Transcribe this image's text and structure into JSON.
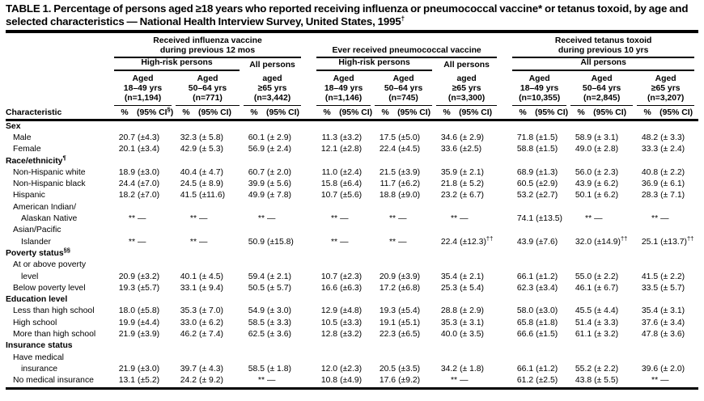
{
  "title": {
    "text": "TABLE 1. Percentage of persons aged ≥18 years who reported receiving influenza or pneumococcal vaccine* or tetanus toxoid, by age and selected characteristics — National Health Interview Survey, United States, 1995",
    "sup": "†"
  },
  "header": {
    "characteristic_label": "Characteristic",
    "groups": [
      {
        "label_lines": [
          "Received influenza vaccine",
          "during previous 12 mos"
        ],
        "subgroups": [
          {
            "label": "High-risk persons",
            "cols": 2,
            "rule": true
          },
          {
            "label": "All persons",
            "cols": 1,
            "rule": false
          }
        ],
        "columns": [
          {
            "lines": [
              "Aged",
              "18–49 yrs",
              "(n=1,194)"
            ]
          },
          {
            "lines": [
              "Aged",
              "50–64 yrs",
              "(n=771)"
            ]
          },
          {
            "lines": [
              "aged",
              "≥65 yrs",
              "(n=3,442)"
            ]
          }
        ],
        "measures": [
          {
            "pct": "%",
            "ci_pre": "(95% CI",
            "ci_sup": "§",
            "ci_post": ")"
          },
          {
            "pct": "%",
            "ci_pre": "(95% CI)",
            "ci_sup": "",
            "ci_post": ""
          },
          {
            "pct": "%",
            "ci_pre": "(95% CI)",
            "ci_sup": "",
            "ci_post": ""
          }
        ]
      },
      {
        "label_lines": [
          "Ever received pneumococcal vaccine"
        ],
        "subgroups": [
          {
            "label": "High-risk persons",
            "cols": 2,
            "rule": true
          },
          {
            "label": "All persons",
            "cols": 1,
            "rule": false
          }
        ],
        "columns": [
          {
            "lines": [
              "Aged",
              "18–49 yrs",
              "(n=1,146)"
            ]
          },
          {
            "lines": [
              "Aged",
              "50–64 yrs",
              "(n=745)"
            ]
          },
          {
            "lines": [
              "aged",
              "≥65 yrs",
              "(n=3,300)"
            ]
          }
        ],
        "measures": [
          {
            "pct": "%",
            "ci_pre": "(95% CI)",
            "ci_sup": "",
            "ci_post": ""
          },
          {
            "pct": "%",
            "ci_pre": "(95% CI)",
            "ci_sup": "",
            "ci_post": ""
          },
          {
            "pct": "%",
            "ci_pre": "(95% CI)",
            "ci_sup": "",
            "ci_post": ""
          }
        ]
      },
      {
        "label_lines": [
          "Received tetanus toxoid",
          "during previous 10 yrs"
        ],
        "subgroups": [
          {
            "label": "All persons",
            "cols": 3,
            "rule": true
          }
        ],
        "columns": [
          {
            "lines": [
              "Aged",
              "18–49 yrs",
              "(n=10,355)"
            ]
          },
          {
            "lines": [
              "Aged",
              "50–64 yrs",
              "(n=2,845)"
            ]
          },
          {
            "lines": [
              "Aged",
              "≥65 yrs",
              "(n=3,207)"
            ]
          }
        ],
        "measures": [
          {
            "pct": "%",
            "ci_pre": "(95% CI)",
            "ci_sup": "",
            "ci_post": ""
          },
          {
            "pct": "%",
            "ci_pre": "(95% CI)",
            "ci_sup": "",
            "ci_post": ""
          },
          {
            "pct": "%",
            "ci_pre": "(95% CI)",
            "ci_sup": "",
            "ci_post": ""
          }
        ]
      }
    ]
  },
  "rows": [
    {
      "label": "Sex",
      "sup": "",
      "bold": true,
      "indent": 0,
      "values": null
    },
    {
      "label": "Male",
      "sup": "",
      "bold": false,
      "indent": 1,
      "values": [
        [
          "20.7",
          "(±4.3)"
        ],
        [
          "32.3",
          "(± 5.8)"
        ],
        [
          "60.1",
          "(± 2.9)"
        ],
        [
          "11.3",
          "(±3.2)"
        ],
        [
          "17.5",
          "(±5.0)"
        ],
        [
          "34.6",
          "(± 2.9)"
        ],
        [
          "71.8",
          "(±1.5)"
        ],
        [
          "58.9",
          "(± 3.1)"
        ],
        [
          "48.2",
          "(± 3.3)"
        ]
      ]
    },
    {
      "label": "Female",
      "sup": "",
      "bold": false,
      "indent": 1,
      "values": [
        [
          "20.1",
          "(±3.4)"
        ],
        [
          "42.9",
          "(± 5.3)"
        ],
        [
          "56.9",
          "(± 2.4)"
        ],
        [
          "12.1",
          "(±2.8)"
        ],
        [
          "22.4",
          "(±4.5)"
        ],
        [
          "33.6",
          "(±2.5)"
        ],
        [
          "58.8",
          "(±1.5)"
        ],
        [
          "49.0",
          "(± 2.8)"
        ],
        [
          "33.3",
          "(± 2.4)"
        ]
      ]
    },
    {
      "label": "Race/ethnicity",
      "sup": "¶",
      "bold": true,
      "indent": 0,
      "values": null
    },
    {
      "label": "Non-Hispanic white",
      "sup": "",
      "bold": false,
      "indent": 1,
      "values": [
        [
          "18.9",
          "(±3.0)"
        ],
        [
          "40.4",
          "(± 4.7)"
        ],
        [
          "60.7",
          "(± 2.0)"
        ],
        [
          "11.0",
          "(±2.4)"
        ],
        [
          "21.5",
          "(±3.9)"
        ],
        [
          "35.9",
          "(± 2.1)"
        ],
        [
          "68.9",
          "(±1.3)"
        ],
        [
          "56.0",
          "(± 2.3)"
        ],
        [
          "40.8",
          "(± 2.2)"
        ]
      ]
    },
    {
      "label": "Non-Hispanic black",
      "sup": "",
      "bold": false,
      "indent": 1,
      "values": [
        [
          "24.4",
          "(±7.0)"
        ],
        [
          "24.5",
          "(± 8.9)"
        ],
        [
          "39.9",
          "(± 5.6)"
        ],
        [
          "15.8",
          "(±6.4)"
        ],
        [
          "11.7",
          "(±6.2)"
        ],
        [
          "21.8",
          "(± 5.2)"
        ],
        [
          "60.5",
          "(±2.9)"
        ],
        [
          "43.9",
          "(± 6.2)"
        ],
        [
          "36.9",
          "(± 6.1)"
        ]
      ]
    },
    {
      "label": "Hispanic",
      "sup": "",
      "bold": false,
      "indent": 1,
      "values": [
        [
          "18.2",
          "(±7.0)"
        ],
        [
          "41.5",
          "(±11.6)"
        ],
        [
          "49.9",
          "(± 7.8)"
        ],
        [
          "10.7",
          "(±5.6)"
        ],
        [
          "18.8",
          "(±9.0)"
        ],
        [
          "23.2",
          "(± 6.7)"
        ],
        [
          "53.2",
          "(±2.7)"
        ],
        [
          "50.1",
          "(± 6.2)"
        ],
        [
          "28.3",
          "(± 7.1)"
        ]
      ]
    },
    {
      "label": "American Indian/",
      "sup": "",
      "bold": false,
      "indent": 1,
      "values": null
    },
    {
      "label": "Alaskan Native",
      "sup": "",
      "bold": false,
      "indent": 2,
      "values": [
        [
          "**",
          "—"
        ],
        [
          "**",
          "—"
        ],
        [
          "**",
          "—"
        ],
        [
          "**",
          "—"
        ],
        [
          "**",
          "—"
        ],
        [
          "**",
          "—"
        ],
        [
          "74.1",
          "(±13.5)"
        ],
        [
          "**",
          "—"
        ],
        [
          "**",
          "—"
        ]
      ]
    },
    {
      "label": "Asian/Pacific",
      "sup": "",
      "bold": false,
      "indent": 1,
      "values": null
    },
    {
      "label": "Islander",
      "sup": "",
      "bold": false,
      "indent": 2,
      "values": [
        [
          "**",
          "—"
        ],
        [
          "**",
          "—"
        ],
        [
          "50.9",
          "(±15.8)"
        ],
        [
          "**",
          "—"
        ],
        [
          "**",
          "—"
        ],
        [
          "22.4",
          "(±12.3)",
          "††"
        ],
        [
          "43.9",
          "(±7.6)"
        ],
        [
          "32.0",
          "(±14.9)",
          "††"
        ],
        [
          "25.1",
          "(±13.7)",
          "††"
        ]
      ]
    },
    {
      "label": "Poverty status",
      "sup": "§§",
      "bold": true,
      "indent": 0,
      "values": null
    },
    {
      "label": "At or above poverty",
      "sup": "",
      "bold": false,
      "indent": 1,
      "values": null
    },
    {
      "label": "level",
      "sup": "",
      "bold": false,
      "indent": 2,
      "values": [
        [
          "20.9",
          "(±3.2)"
        ],
        [
          "40.1",
          "(± 4.5)"
        ],
        [
          "59.4",
          "(± 2.1)"
        ],
        [
          "10.7",
          "(±2.3)"
        ],
        [
          "20.9",
          "(±3.9)"
        ],
        [
          "35.4",
          "(± 2.1)"
        ],
        [
          "66.1",
          "(±1.2)"
        ],
        [
          "55.0",
          "(± 2.2)"
        ],
        [
          "41.5",
          "(± 2.2)"
        ]
      ]
    },
    {
      "label": "Below poverty level",
      "sup": "",
      "bold": false,
      "indent": 1,
      "values": [
        [
          "19.3",
          "(±5.7)"
        ],
        [
          "33.1",
          "(± 9.4)"
        ],
        [
          "50.5",
          "(± 5.7)"
        ],
        [
          "16.6",
          "(±6.3)"
        ],
        [
          "17.2",
          "(±6.8)"
        ],
        [
          "25.3",
          "(± 5.4)"
        ],
        [
          "62.3",
          "(±3.4)"
        ],
        [
          "46.1",
          "(± 6.7)"
        ],
        [
          "33.5",
          "(± 5.7)"
        ]
      ]
    },
    {
      "label": "Education level",
      "sup": "",
      "bold": true,
      "indent": 0,
      "values": null
    },
    {
      "label": "Less than high school",
      "sup": "",
      "bold": false,
      "indent": 1,
      "values": [
        [
          "18.0",
          "(±5.8)"
        ],
        [
          "35.3",
          "(± 7.0)"
        ],
        [
          "54.9",
          "(± 3.0)"
        ],
        [
          "12.9",
          "(±4.8)"
        ],
        [
          "19.3",
          "(±5.4)"
        ],
        [
          "28.8",
          "(± 2.9)"
        ],
        [
          "58.0",
          "(±3.0)"
        ],
        [
          "45.5",
          "(± 4.4)"
        ],
        [
          "35.4",
          "(± 3.1)"
        ]
      ]
    },
    {
      "label": "High school",
      "sup": "",
      "bold": false,
      "indent": 1,
      "values": [
        [
          "19.9",
          "(±4.4)"
        ],
        [
          "33.0",
          "(± 6.2)"
        ],
        [
          "58.5",
          "(± 3.3)"
        ],
        [
          "10.5",
          "(±3.3)"
        ],
        [
          "19.1",
          "(±5.1)"
        ],
        [
          "35.3",
          "(± 3.1)"
        ],
        [
          "65.8",
          "(±1.8)"
        ],
        [
          "51.4",
          "(± 3.3)"
        ],
        [
          "37.6",
          "(± 3.4)"
        ]
      ]
    },
    {
      "label": "More than high school",
      "sup": "",
      "bold": false,
      "indent": 1,
      "values": [
        [
          "21.9",
          "(±3.9)"
        ],
        [
          "46.2",
          "(± 7.4)"
        ],
        [
          "62.5",
          "(± 3.6)"
        ],
        [
          "12.8",
          "(±3.2)"
        ],
        [
          "22.3",
          "(±6.5)"
        ],
        [
          "40.0",
          "(± 3.5)"
        ],
        [
          "66.6",
          "(±1.5)"
        ],
        [
          "61.1",
          "(± 3.2)"
        ],
        [
          "47.8",
          "(± 3.6)"
        ]
      ]
    },
    {
      "label": "Insurance status",
      "sup": "",
      "bold": true,
      "indent": 0,
      "values": null
    },
    {
      "label": "Have medical",
      "sup": "",
      "bold": false,
      "indent": 1,
      "values": null
    },
    {
      "label": "insurance",
      "sup": "",
      "bold": false,
      "indent": 2,
      "values": [
        [
          "21.9",
          "(±3.0)"
        ],
        [
          "39.7",
          "(± 4.3)"
        ],
        [
          "58.5",
          "(± 1.8)"
        ],
        [
          "12.0",
          "(±2.3)"
        ],
        [
          "20.5",
          "(±3.5)"
        ],
        [
          "34.2",
          "(± 1.8)"
        ],
        [
          "66.1",
          "(±1.2)"
        ],
        [
          "55.2",
          "(± 2.2)"
        ],
        [
          "39.6",
          "(± 2.0)"
        ]
      ]
    },
    {
      "label": "No medical insurance",
      "sup": "",
      "bold": false,
      "indent": 1,
      "values": [
        [
          "13.1",
          "(±5.2)"
        ],
        [
          "24.2",
          "(± 9.2)"
        ],
        [
          "**",
          "—"
        ],
        [
          "10.8",
          "(±4.9)"
        ],
        [
          "17.6",
          "(±9.2)"
        ],
        [
          "**",
          "—"
        ],
        [
          "61.2",
          "(±2.5)"
        ],
        [
          "43.8",
          "(± 5.5)"
        ],
        [
          "**",
          "—"
        ]
      ]
    }
  ],
  "colors": {
    "text": "#000000",
    "background": "#ffffff",
    "rule": "#000000"
  }
}
